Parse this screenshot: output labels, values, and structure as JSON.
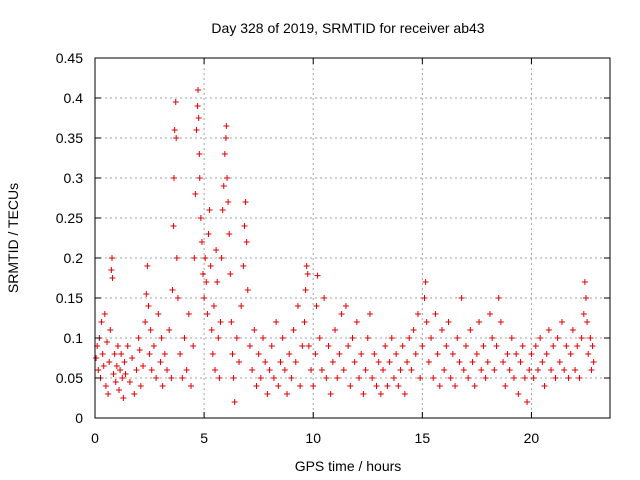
{
  "chart_data": {
    "type": "scatter",
    "title": "Day 328 of 2019, SRMTID for receiver ab43",
    "xlabel": "GPS time / hours",
    "ylabel": "SRMTID / TECUs",
    "xlim": [
      0,
      23.6
    ],
    "ylim": [
      0,
      0.45
    ],
    "xticks": [
      0,
      5,
      10,
      15,
      20
    ],
    "xtick_labels": [
      "0",
      "5",
      "10",
      "15",
      "20"
    ],
    "yticks": [
      0,
      0.05,
      0.1,
      0.15,
      0.2,
      0.25,
      0.3,
      0.35,
      0.4,
      0.45
    ],
    "ytick_labels": [
      "0",
      "0.05",
      "0.1",
      "0.15",
      "0.2",
      "0.25",
      "0.3",
      "0.35",
      "0.4",
      "0.45"
    ],
    "grid": true,
    "marker": "+",
    "color": "#e00000",
    "series": [
      {
        "name": "SRMTID",
        "points": [
          [
            0.05,
            0.075
          ],
          [
            0.1,
            0.09
          ],
          [
            0.15,
            0.06
          ],
          [
            0.2,
            0.1
          ],
          [
            0.25,
            0.05
          ],
          [
            0.3,
            0.12
          ],
          [
            0.35,
            0.08
          ],
          [
            0.4,
            0.065
          ],
          [
            0.45,
            0.13
          ],
          [
            0.5,
            0.04
          ],
          [
            0.55,
            0.095
          ],
          [
            0.6,
            0.03
          ],
          [
            0.65,
            0.07
          ],
          [
            0.7,
            0.11
          ],
          [
            0.75,
            0.185
          ],
          [
            0.78,
            0.2
          ],
          [
            0.8,
            0.175
          ],
          [
            0.85,
            0.055
          ],
          [
            0.9,
            0.08
          ],
          [
            0.95,
            0.045
          ],
          [
            1.0,
            0.065
          ],
          [
            1.05,
            0.09
          ],
          [
            1.1,
            0.035
          ],
          [
            1.15,
            0.06
          ],
          [
            1.2,
            0.08
          ],
          [
            1.25,
            0.05
          ],
          [
            1.3,
            0.025
          ],
          [
            1.35,
            0.07
          ],
          [
            1.4,
            0.055
          ],
          [
            1.5,
            0.09
          ],
          [
            1.6,
            0.045
          ],
          [
            1.7,
            0.075
          ],
          [
            1.8,
            0.03
          ],
          [
            1.9,
            0.06
          ],
          [
            2.0,
            0.1
          ],
          [
            2.05,
            0.085
          ],
          [
            2.1,
            0.04
          ],
          [
            2.2,
            0.065
          ],
          [
            2.3,
            0.12
          ],
          [
            2.35,
            0.155
          ],
          [
            2.4,
            0.19
          ],
          [
            2.45,
            0.14
          ],
          [
            2.5,
            0.08
          ],
          [
            2.55,
            0.11
          ],
          [
            2.6,
            0.06
          ],
          [
            2.7,
            0.09
          ],
          [
            2.8,
            0.05
          ],
          [
            2.9,
            0.13
          ],
          [
            3.0,
            0.07
          ],
          [
            3.05,
            0.1
          ],
          [
            3.1,
            0.04
          ],
          [
            3.2,
            0.08
          ],
          [
            3.3,
            0.06
          ],
          [
            3.4,
            0.11
          ],
          [
            3.5,
            0.05
          ],
          [
            3.55,
            0.16
          ],
          [
            3.6,
            0.24
          ],
          [
            3.62,
            0.3
          ],
          [
            3.65,
            0.36
          ],
          [
            3.7,
            0.395
          ],
          [
            3.72,
            0.35
          ],
          [
            3.75,
            0.2
          ],
          [
            3.8,
            0.15
          ],
          [
            3.9,
            0.08
          ],
          [
            4.0,
            0.05
          ],
          [
            4.1,
            0.1
          ],
          [
            4.2,
            0.06
          ],
          [
            4.3,
            0.13
          ],
          [
            4.4,
            0.04
          ],
          [
            4.5,
            0.09
          ],
          [
            4.55,
            0.2
          ],
          [
            4.6,
            0.28
          ],
          [
            4.65,
            0.36
          ],
          [
            4.7,
            0.39
          ],
          [
            4.72,
            0.41
          ],
          [
            4.75,
            0.375
          ],
          [
            4.78,
            0.33
          ],
          [
            4.8,
            0.3
          ],
          [
            4.85,
            0.25
          ],
          [
            4.9,
            0.22
          ],
          [
            4.95,
            0.18
          ],
          [
            5.0,
            0.15
          ],
          [
            5.05,
            0.2
          ],
          [
            5.1,
            0.17
          ],
          [
            5.15,
            0.13
          ],
          [
            5.2,
            0.23
          ],
          [
            5.25,
            0.26
          ],
          [
            5.3,
            0.19
          ],
          [
            5.35,
            0.11
          ],
          [
            5.4,
            0.08
          ],
          [
            5.45,
            0.14
          ],
          [
            5.5,
            0.06
          ],
          [
            5.55,
            0.21
          ],
          [
            5.6,
            0.17
          ],
          [
            5.65,
            0.1
          ],
          [
            5.7,
            0.05
          ],
          [
            5.75,
            0.12
          ],
          [
            5.8,
            0.2
          ],
          [
            5.85,
            0.26
          ],
          [
            5.9,
            0.29
          ],
          [
            5.95,
            0.33
          ],
          [
            6.0,
            0.35
          ],
          [
            6.02,
            0.365
          ],
          [
            6.05,
            0.3
          ],
          [
            6.1,
            0.27
          ],
          [
            6.15,
            0.23
          ],
          [
            6.2,
            0.18
          ],
          [
            6.25,
            0.12
          ],
          [
            6.3,
            0.08
          ],
          [
            6.35,
            0.05
          ],
          [
            6.4,
            0.02
          ],
          [
            6.5,
            0.1
          ],
          [
            6.6,
            0.07
          ],
          [
            6.7,
            0.14
          ],
          [
            6.8,
            0.19
          ],
          [
            6.85,
            0.24
          ],
          [
            6.9,
            0.27
          ],
          [
            6.95,
            0.22
          ],
          [
            7.0,
            0.16
          ],
          [
            7.1,
            0.09
          ],
          [
            7.2,
            0.06
          ],
          [
            7.3,
            0.11
          ],
          [
            7.4,
            0.04
          ],
          [
            7.5,
            0.08
          ],
          [
            7.6,
            0.05
          ],
          [
            7.7,
            0.1
          ],
          [
            7.8,
            0.07
          ],
          [
            7.9,
            0.03
          ],
          [
            8.0,
            0.06
          ],
          [
            8.1,
            0.09
          ],
          [
            8.2,
            0.05
          ],
          [
            8.3,
            0.12
          ],
          [
            8.4,
            0.04
          ],
          [
            8.5,
            0.07
          ],
          [
            8.6,
            0.1
          ],
          [
            8.7,
            0.06
          ],
          [
            8.8,
            0.03
          ],
          [
            8.9,
            0.08
          ],
          [
            9.0,
            0.05
          ],
          [
            9.1,
            0.11
          ],
          [
            9.2,
            0.07
          ],
          [
            9.3,
            0.14
          ],
          [
            9.4,
            0.04
          ],
          [
            9.5,
            0.09
          ],
          [
            9.6,
            0.12
          ],
          [
            9.65,
            0.16
          ],
          [
            9.7,
            0.19
          ],
          [
            9.75,
            0.18
          ],
          [
            9.8,
            0.09
          ],
          [
            9.9,
            0.06
          ],
          [
            10.0,
            0.04
          ],
          [
            10.1,
            0.08
          ],
          [
            10.15,
            0.14
          ],
          [
            10.2,
            0.178
          ],
          [
            10.3,
            0.1
          ],
          [
            10.4,
            0.06
          ],
          [
            10.5,
            0.15
          ],
          [
            10.6,
            0.05
          ],
          [
            10.7,
            0.09
          ],
          [
            10.8,
            0.03
          ],
          [
            10.9,
            0.07
          ],
          [
            11.0,
            0.11
          ],
          [
            11.1,
            0.05
          ],
          [
            11.2,
            0.08
          ],
          [
            11.3,
            0.13
          ],
          [
            11.4,
            0.06
          ],
          [
            11.5,
            0.14
          ],
          [
            11.6,
            0.09
          ],
          [
            11.7,
            0.04
          ],
          [
            11.8,
            0.1
          ],
          [
            11.9,
            0.07
          ],
          [
            12.0,
            0.12
          ],
          [
            12.1,
            0.05
          ],
          [
            12.2,
            0.08
          ],
          [
            12.3,
            0.03
          ],
          [
            12.4,
            0.06
          ],
          [
            12.5,
            0.1
          ],
          [
            12.6,
            0.13
          ],
          [
            12.7,
            0.05
          ],
          [
            12.8,
            0.08
          ],
          [
            12.9,
            0.04
          ],
          [
            13.0,
            0.07
          ],
          [
            13.1,
            0.03
          ],
          [
            13.2,
            0.06
          ],
          [
            13.3,
            0.09
          ],
          [
            13.4,
            0.04
          ],
          [
            13.5,
            0.07
          ],
          [
            13.6,
            0.1
          ],
          [
            13.7,
            0.05
          ],
          [
            13.8,
            0.08
          ],
          [
            13.9,
            0.04
          ],
          [
            14.0,
            0.06
          ],
          [
            14.1,
            0.09
          ],
          [
            14.2,
            0.03
          ],
          [
            14.3,
            0.07
          ],
          [
            14.4,
            0.1
          ],
          [
            14.5,
            0.06
          ],
          [
            14.6,
            0.11
          ],
          [
            14.7,
            0.08
          ],
          [
            14.8,
            0.13
          ],
          [
            14.9,
            0.05
          ],
          [
            15.0,
            0.09
          ],
          [
            15.1,
            0.15
          ],
          [
            15.15,
            0.17
          ],
          [
            15.2,
            0.12
          ],
          [
            15.3,
            0.07
          ],
          [
            15.4,
            0.1
          ],
          [
            15.5,
            0.05
          ],
          [
            15.6,
            0.13
          ],
          [
            15.7,
            0.08
          ],
          [
            15.8,
            0.04
          ],
          [
            15.9,
            0.11
          ],
          [
            16.0,
            0.06
          ],
          [
            16.1,
            0.09
          ],
          [
            16.2,
            0.12
          ],
          [
            16.3,
            0.05
          ],
          [
            16.4,
            0.08
          ],
          [
            16.5,
            0.04
          ],
          [
            16.6,
            0.1
          ],
          [
            16.7,
            0.07
          ],
          [
            16.8,
            0.15
          ],
          [
            16.9,
            0.06
          ],
          [
            17.0,
            0.09
          ],
          [
            17.1,
            0.05
          ],
          [
            17.2,
            0.11
          ],
          [
            17.3,
            0.07
          ],
          [
            17.4,
            0.04
          ],
          [
            17.5,
            0.08
          ],
          [
            17.6,
            0.12
          ],
          [
            17.7,
            0.06
          ],
          [
            17.8,
            0.09
          ],
          [
            17.9,
            0.05
          ],
          [
            18.0,
            0.07
          ],
          [
            18.1,
            0.13
          ],
          [
            18.2,
            0.1
          ],
          [
            18.3,
            0.06
          ],
          [
            18.4,
            0.09
          ],
          [
            18.5,
            0.15
          ],
          [
            18.6,
            0.12
          ],
          [
            18.7,
            0.07
          ],
          [
            18.8,
            0.04
          ],
          [
            18.9,
            0.08
          ],
          [
            19.0,
            0.06
          ],
          [
            19.1,
            0.1
          ],
          [
            19.2,
            0.05
          ],
          [
            19.3,
            0.08
          ],
          [
            19.4,
            0.03
          ],
          [
            19.5,
            0.07
          ],
          [
            19.6,
            0.09
          ],
          [
            19.7,
            0.05
          ],
          [
            19.8,
            0.02
          ],
          [
            19.9,
            0.06
          ],
          [
            20.0,
            0.08
          ],
          [
            20.1,
            0.05
          ],
          [
            20.2,
            0.09
          ],
          [
            20.3,
            0.06
          ],
          [
            20.4,
            0.1
          ],
          [
            20.5,
            0.07
          ],
          [
            20.6,
            0.04
          ],
          [
            20.7,
            0.08
          ],
          [
            20.8,
            0.11
          ],
          [
            20.9,
            0.06
          ],
          [
            21.0,
            0.09
          ],
          [
            21.1,
            0.05
          ],
          [
            21.2,
            0.1
          ],
          [
            21.3,
            0.07
          ],
          [
            21.4,
            0.12
          ],
          [
            21.5,
            0.06
          ],
          [
            21.6,
            0.09
          ],
          [
            21.7,
            0.05
          ],
          [
            21.8,
            0.08
          ],
          [
            21.9,
            0.11
          ],
          [
            22.0,
            0.06
          ],
          [
            22.1,
            0.09
          ],
          [
            22.2,
            0.05
          ],
          [
            22.3,
            0.1
          ],
          [
            22.4,
            0.13
          ],
          [
            22.45,
            0.17
          ],
          [
            22.5,
            0.15
          ],
          [
            22.55,
            0.12
          ],
          [
            22.6,
            0.08
          ],
          [
            22.7,
            0.1
          ],
          [
            22.75,
            0.06
          ],
          [
            22.8,
            0.09
          ],
          [
            22.85,
            0.07
          ]
        ]
      }
    ]
  }
}
